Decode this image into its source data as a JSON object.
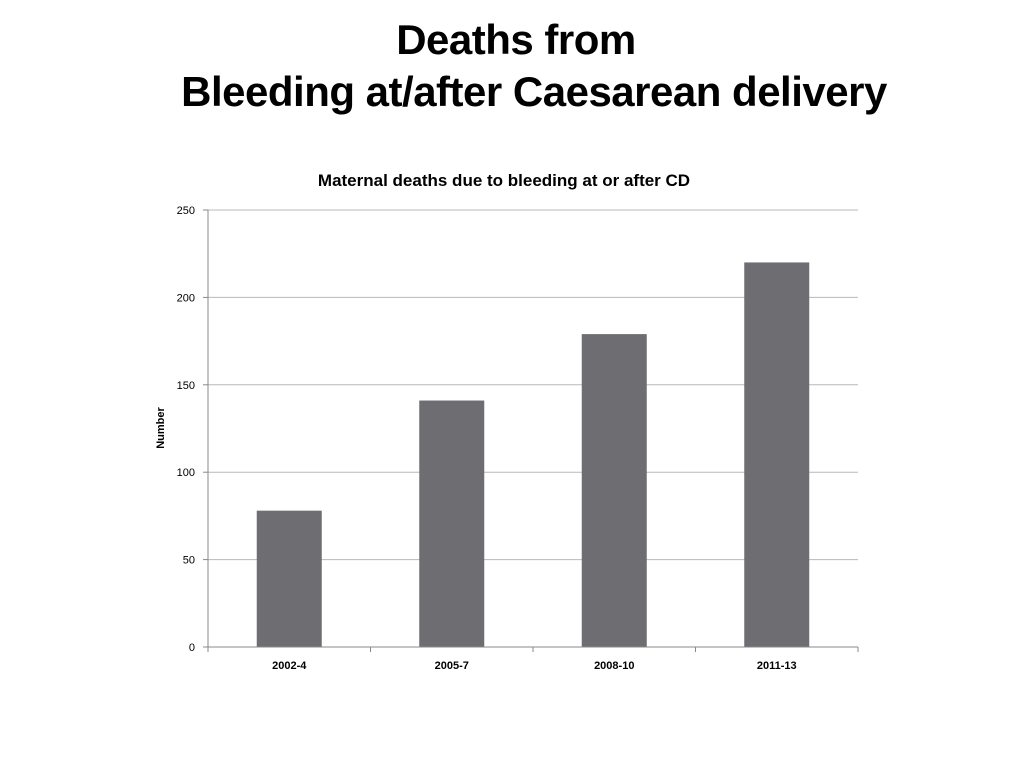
{
  "slide": {
    "title_line1": "Deaths from",
    "title_line2": "Bleeding at/after Caesarean delivery"
  },
  "chart_data": {
    "type": "bar",
    "title": "Maternal deaths due to bleeding at or after CD",
    "xlabel": "",
    "ylabel": "Number",
    "categories": [
      "2002-4",
      "2005-7",
      "2008-10",
      "2011-13"
    ],
    "values": [
      78,
      141,
      179,
      220
    ],
    "ylim": [
      0,
      250
    ],
    "yticks": [
      0,
      50,
      100,
      150,
      200,
      250
    ],
    "grid": true,
    "legend": "none",
    "colors": {
      "bar": "#6e6d72",
      "grid": "#b8b8b8",
      "axis": "#888888",
      "text": "#000000"
    }
  }
}
